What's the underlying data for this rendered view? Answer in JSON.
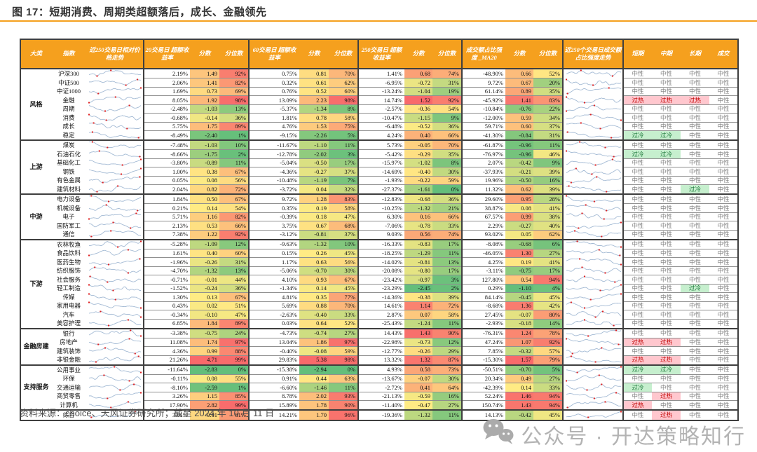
{
  "title": "图 17：短期消费、周期类超额落后，成长、金融领先",
  "source_note": "资料来源：choice、天风证券研究所；截至 2024 年 10 月 11 日",
  "watermark": {
    "icon": "wechat-icon",
    "text": "公众号 · 开达策略知行"
  },
  "colors": {
    "accent": "#F5A01E",
    "header_bg": "#F5A01E",
    "heat_low": "#63BE7B",
    "heat_mid": "#FFEB84",
    "heat_high": "#F8696B",
    "overheat_bg": "#FFC7CE",
    "overheat_text": "#C00000",
    "overcool_bg": "#C6EFCE",
    "overcool_text": "#1F7A3C",
    "spark_line": "#A3BAD4",
    "spark_dot": "#E01F1F"
  },
  "table": {
    "column_headers": [
      "大类",
      "指数",
      "近250交易日相对价格走势",
      "20交易日 超额收益率",
      "分数",
      "分位数",
      "60交易日 超额收益率",
      "分数",
      "分位数",
      "250交易日 超额收益率",
      "分数",
      "分位数",
      "成交额占比强度 _MA20",
      "分数",
      "分位数",
      "近250个交易日成交额占比强度走势",
      "短期",
      "中期",
      "长期",
      "成交"
    ],
    "legend": {
      "neutral": "中性",
      "overheat": "过热",
      "overcool": "过冷"
    },
    "groups": [
      {
        "category": "风格",
        "rows": [
          {
            "name": "沪深300",
            "r20": 2.19,
            "s20": 1.49,
            "p20": 92,
            "r60": 0.75,
            "s60": 0.81,
            "p60": 70,
            "r250": 1.41,
            "s250": 0.68,
            "p250": 74,
            "ma20": -48.9,
            "sma": 0.66,
            "pma": 52,
            "short": "中性",
            "mid": "中性",
            "long": "中性",
            "turnover": "中性"
          },
          {
            "name": "中证500",
            "r20": 2.06,
            "s20": 1.41,
            "p20": 82,
            "r60": 0.32,
            "s60": 0.61,
            "p60": 62,
            "r250": -6.95,
            "s250": -0.72,
            "p250": 31,
            "ma20": 9.72,
            "sma": 0.67,
            "pma": 20,
            "short": "中性",
            "mid": "中性",
            "long": "中性",
            "turnover": "中性"
          },
          {
            "name": "中证1000",
            "r20": 1.69,
            "s20": 0.73,
            "p20": 69,
            "r60": 0.76,
            "s60": 0.52,
            "p60": 60,
            "r250": -13.24,
            "s250": -1.04,
            "p250": 19,
            "ma20": 61.14,
            "sma": 0.89,
            "pma": 35,
            "short": "中性",
            "mid": "中性",
            "long": "中性",
            "turnover": "中性"
          },
          {
            "name": "金融",
            "r20": 8.05,
            "s20": 1.92,
            "p20": 98,
            "r60": 13.09,
            "s60": 2.23,
            "p60": 98,
            "r250": 14.74,
            "s250": 1.52,
            "p250": 92,
            "ma20": -45.92,
            "sma": 1.41,
            "pma": 83,
            "short": "过热",
            "mid": "过热",
            "long": "过热",
            "turnover": "中性"
          },
          {
            "name": "周期",
            "r20": -2.48,
            "s20": -1.03,
            "p20": 13,
            "r60": -5.37,
            "s60": -1.34,
            "p60": 8,
            "r250": -2.57,
            "s250": -0.36,
            "p250": 54,
            "ma20": -10.84,
            "sma": -0.76,
            "pma": 22,
            "short": "中性",
            "mid": "中性",
            "long": "中性",
            "turnover": "中性"
          },
          {
            "name": "消费",
            "r20": -0.68,
            "s20": -0.14,
            "p20": 36,
            "r60": 1.81,
            "s60": 0.78,
            "p60": 58,
            "r250": -10.47,
            "s250": -1.15,
            "p250": 9,
            "ma20": -12.0,
            "sma": 0.59,
            "pma": 34,
            "short": "中性",
            "mid": "中性",
            "long": "中性",
            "turnover": "中性"
          },
          {
            "name": "成长",
            "r20": 5.75,
            "s20": 1.75,
            "p20": 89,
            "r60": 4.76,
            "s60": 1.53,
            "p60": 75,
            "r250": -6.48,
            "s250": -0.52,
            "p250": 36,
            "ma20": 59.71,
            "sma": 0.6,
            "pma": 37,
            "short": "中性",
            "mid": "中性",
            "long": "中性",
            "turnover": "中性"
          },
          {
            "name": "稳定",
            "r20": -8.49,
            "s20": -2.4,
            "p20": 1,
            "r60": -9.15,
            "s60": -2.26,
            "p60": 5,
            "r250": 4.24,
            "s250": 0.4,
            "p250": 66,
            "ma20": -41.3,
            "sma": -0.84,
            "pma": 31,
            "short": "过冷",
            "mid": "过冷",
            "long": "中性",
            "turnover": "中性"
          }
        ]
      },
      {
        "category": "上游",
        "rows": [
          {
            "name": "煤炭",
            "r20": -7.48,
            "s20": -1.03,
            "p20": 10,
            "r60": -11.67,
            "s60": -1.1,
            "p60": 11,
            "r250": 5.73,
            "s250": -0.05,
            "p250": 70,
            "ma20": -61.87,
            "sma": -0.96,
            "pma": 11,
            "short": "中性",
            "mid": "中性",
            "long": "中性",
            "turnover": "中性"
          },
          {
            "name": "石油石化",
            "r20": -8.66,
            "s20": -1.75,
            "p20": 2,
            "r60": -12.78,
            "s60": -2.02,
            "p60": 3,
            "r250": -5.42,
            "s250": -0.29,
            "p250": 35,
            "ma20": -76.97,
            "sma": -0.96,
            "pma": 46,
            "short": "过冷",
            "mid": "过冷",
            "long": "中性",
            "turnover": "中性"
          },
          {
            "name": "基础化工",
            "r20": -3.8,
            "s20": -0.89,
            "p20": 11,
            "r60": -5.04,
            "s60": -0.5,
            "p60": 17,
            "r250": -15.97,
            "s250": -1.02,
            "p250": 8,
            "ma20": 2.07,
            "sma": -0.42,
            "pma": 9,
            "short": "中性",
            "mid": "中性",
            "long": "中性",
            "turnover": "中性"
          },
          {
            "name": "钢铁",
            "r20": 1.0,
            "s20": 0.38,
            "p20": 67,
            "r60": -4.36,
            "s60": -0.27,
            "p60": 37,
            "r250": -14.69,
            "s250": -0.4,
            "p250": 30,
            "ma20": -37.93,
            "sma": -0.21,
            "pma": 39,
            "short": "中性",
            "mid": "中性",
            "long": "中性",
            "turnover": "中性"
          },
          {
            "name": "有色金属",
            "r20": 0.05,
            "s20": 0.08,
            "p20": 56,
            "r60": -10.48,
            "s60": -1.19,
            "p60": 7,
            "r250": -1.93,
            "s250": -0.22,
            "p250": 59,
            "ma20": 19.96,
            "sma": -0.5,
            "pma": 16,
            "short": "中性",
            "mid": "中性",
            "long": "中性",
            "turnover": "中性"
          },
          {
            "name": "建筑材料",
            "r20": 2.04,
            "s20": 0.82,
            "p20": 72,
            "r60": -3.72,
            "s60": 0.04,
            "p60": 32,
            "r250": -27.37,
            "s250": -1.61,
            "p250": 0,
            "ma20": 11.32,
            "sma": 0.62,
            "pma": 39,
            "short": "中性",
            "mid": "中性",
            "long": "过冷",
            "turnover": "中性"
          }
        ]
      },
      {
        "category": "中游",
        "rows": [
          {
            "name": "电力设备",
            "r20": 1.84,
            "s20": 0.5,
            "p20": 67,
            "r60": 9.72,
            "s60": 1.28,
            "p60": 83,
            "r250": -12.83,
            "s250": -0.68,
            "p250": 36,
            "ma20": 29.6,
            "sma": 0.95,
            "pma": 28,
            "short": "中性",
            "mid": "中性",
            "long": "中性",
            "turnover": "中性"
          },
          {
            "name": "机械设备",
            "r20": 0.21,
            "s20": 0.14,
            "p20": 54,
            "r60": 0.35,
            "s60": 0.19,
            "p60": 58,
            "r250": -10.25,
            "s250": -1.32,
            "p250": 21,
            "ma20": 38.87,
            "sma": 0.08,
            "pma": 41,
            "short": "中性",
            "mid": "中性",
            "long": "中性",
            "turnover": "中性"
          },
          {
            "name": "电子",
            "r20": 5.71,
            "s20": 1.16,
            "p20": 82,
            "r60": -0.39,
            "s60": 0.18,
            "p60": 47,
            "r250": 6.3,
            "s250": 0.16,
            "p250": 66,
            "ma20": 67.57,
            "sma": 0.99,
            "pma": 38,
            "short": "中性",
            "mid": "中性",
            "long": "中性",
            "turnover": "中性"
          },
          {
            "name": "国防军工",
            "r20": 2.13,
            "s20": 0.53,
            "p20": 66,
            "r60": 3.75,
            "s60": 0.67,
            "p60": 68,
            "r250": -7.06,
            "s250": -0.78,
            "p250": 33,
            "ma20": 2.29,
            "sma": -0.27,
            "pma": 40,
            "short": "中性",
            "mid": "中性",
            "long": "中性",
            "turnover": "中性"
          },
          {
            "name": "通信",
            "r20": 7.38,
            "s20": 1.22,
            "p20": 92,
            "r60": -3.12,
            "s60": -0.81,
            "p60": 37,
            "r250": 9.03,
            "s250": 0.56,
            "p250": 74,
            "ma20": 93.02,
            "sma": 0.05,
            "pma": 62,
            "short": "中性",
            "mid": "中性",
            "long": "中性",
            "turnover": "中性"
          }
        ]
      },
      {
        "category": "下游",
        "rows": [
          {
            "name": "农林牧渔",
            "r20": -5.28,
            "s20": -1.09,
            "p20": 12,
            "r60": -9.63,
            "s60": -1.32,
            "p60": 10,
            "r250": -16.33,
            "s250": -0.83,
            "p250": 17,
            "ma20": -8.08,
            "sma": -0.68,
            "pma": 6,
            "short": "中性",
            "mid": "中性",
            "long": "中性",
            "turnover": "中性"
          },
          {
            "name": "食品饮料",
            "r20": 1.61,
            "s20": 0.4,
            "p20": 60,
            "r60": 0.15,
            "s60": 0.26,
            "p60": 45,
            "r250": -18.25,
            "s250": -1.29,
            "p250": 11,
            "ma20": -46.05,
            "sma": 1.3,
            "pma": 27,
            "short": "中性",
            "mid": "中性",
            "long": "中性",
            "turnover": "中性"
          },
          {
            "name": "医药生物",
            "r20": -1.96,
            "s20": -0.26,
            "p20": 31,
            "r60": 1.17,
            "s60": 0.63,
            "p60": 56,
            "r250": -14.02,
            "s250": -0.81,
            "p250": 13,
            "ma20": 4.25,
            "sma": 0.19,
            "pma": 41,
            "short": "中性",
            "mid": "中性",
            "long": "中性",
            "turnover": "中性"
          },
          {
            "name": "纺织服饰",
            "r20": -4.7,
            "s20": -1.32,
            "p20": 13,
            "r60": -5.06,
            "s60": -0.7,
            "p60": 30,
            "r250": -20.08,
            "s250": -0.8,
            "p250": 17,
            "ma20": -3.11,
            "sma": -0.75,
            "pma": 17,
            "short": "中性",
            "mid": "中性",
            "long": "中性",
            "turnover": "中性"
          },
          {
            "name": "社会服务",
            "r20": -0.71,
            "s20": -0.01,
            "p20": 44,
            "r60": 4.1,
            "s60": 0.93,
            "p60": 67,
            "r250": -23.42,
            "s250": -0.97,
            "p250": 3,
            "ma20": 127.8,
            "sma": 0.54,
            "pma": 94,
            "short": "中性",
            "mid": "中性",
            "long": "中性",
            "turnover": "中性"
          },
          {
            "name": "轻工制造",
            "r20": -1.52,
            "s20": -0.24,
            "p20": 36,
            "r60": -1.34,
            "s60": 0.14,
            "p60": 45,
            "r250": -23.29,
            "s250": -2.45,
            "p250": 2,
            "ma20": 0.29,
            "sma": -1.1,
            "pma": 4,
            "short": "中性",
            "mid": "中性",
            "long": "过冷",
            "turnover": "中性"
          },
          {
            "name": "传媒",
            "r20": 1.3,
            "s20": 0.13,
            "p20": 67,
            "r60": 4.81,
            "s60": 0.35,
            "p60": 77,
            "r250": -14.36,
            "s250": -0.38,
            "p250": 39,
            "ma20": 84.14,
            "sma": -0.45,
            "pma": 45,
            "short": "中性",
            "mid": "中性",
            "long": "中性",
            "turnover": "中性"
          },
          {
            "name": "家用电器",
            "r20": 0.43,
            "s20": 0.02,
            "p20": 51,
            "r60": 5.69,
            "s60": 0.88,
            "p60": 70,
            "r250": 14.61,
            "s250": 1.14,
            "p250": 72,
            "ma20": -8.68,
            "sma": 1.36,
            "pma": 42,
            "short": "中性",
            "mid": "中性",
            "long": "中性",
            "turnover": "中性"
          },
          {
            "name": "汽车",
            "r20": -0.34,
            "s20": -0.1,
            "p20": 47,
            "r60": -2.63,
            "s60": -0.4,
            "p60": 33,
            "r250": 2.87,
            "s250": 0.07,
            "p250": 58,
            "ma20": 27.45,
            "sma": -0.07,
            "pma": 80,
            "short": "中性",
            "mid": "中性",
            "long": "中性",
            "turnover": "中性"
          },
          {
            "name": "美容护理",
            "r20": 6.85,
            "s20": 1.84,
            "p20": 89,
            "r60": 0.03,
            "s60": 0.64,
            "p60": 52,
            "r250": -25.43,
            "s250": -1.24,
            "p250": 11,
            "ma20": -2.93,
            "sma": -0.18,
            "pma": 14,
            "short": "中性",
            "mid": "中性",
            "long": "中性",
            "turnover": "中性"
          }
        ]
      },
      {
        "category": "金融房建",
        "rows": [
          {
            "name": "银行",
            "r20": -3.38,
            "s20": -0.75,
            "p20": 24,
            "r60": -4.73,
            "s60": -0.74,
            "p60": 27,
            "r250": 14.43,
            "s250": 1.43,
            "p250": 90,
            "ma20": -76.31,
            "sma": 1.24,
            "pma": 78,
            "short": "中性",
            "mid": "中性",
            "long": "中性",
            "turnover": "中性"
          },
          {
            "name": "房地产",
            "r20": 11.08,
            "s20": 1.74,
            "p20": 97,
            "r60": 13.04,
            "s60": 1.86,
            "p60": 97,
            "r250": -22.98,
            "s250": -0.73,
            "p250": 12,
            "ma20": 47.24,
            "sma": 1.07,
            "pma": 92,
            "short": "过热",
            "mid": "过热",
            "long": "中性",
            "turnover": "中性"
          },
          {
            "name": "建筑装饰",
            "r20": 4.36,
            "s20": 0.99,
            "p20": 88,
            "r60": -0.4,
            "s60": -0.08,
            "p60": 59,
            "r250": -12.77,
            "s250": -0.26,
            "p250": 29,
            "ma20": 7.85,
            "sma": -0.32,
            "pma": 57,
            "short": "中性",
            "mid": "中性",
            "long": "中性",
            "turnover": "中性"
          },
          {
            "name": "非银金融",
            "r20": 21.26,
            "s20": 4.71,
            "p20": 99,
            "r60": 29.83,
            "s60": 5.38,
            "p60": 98,
            "r250": 13.32,
            "s250": 1.32,
            "p250": 87,
            "ma20": -15.3,
            "sma": 1.57,
            "pma": 79,
            "short": "过热",
            "mid": "过热",
            "long": "中性",
            "turnover": "中性"
          }
        ]
      },
      {
        "category": "支持服务",
        "rows": [
          {
            "name": "公用事业",
            "r20": -11.64,
            "s20": -2.83,
            "p20": 0,
            "r60": -15.38,
            "s60": -2.94,
            "p60": 0,
            "r250": 4.93,
            "s250": 0.58,
            "p250": 73,
            "ma20": -50.51,
            "sma": -0.7,
            "pma": 5,
            "short": "过冷",
            "mid": "过冷",
            "long": "中性",
            "turnover": "中性"
          },
          {
            "name": "环保",
            "r20": -0.11,
            "s20": 0.08,
            "p20": 55,
            "r60": 0.91,
            "s60": 0.44,
            "p60": 63,
            "r250": -13.67,
            "s250": -0.07,
            "p250": 30,
            "ma20": 20.34,
            "sma": 0.49,
            "pma": 27,
            "short": "中性",
            "mid": "中性",
            "long": "中性",
            "turnover": "中性"
          },
          {
            "name": "交通运输",
            "r20": -8.1,
            "s20": -2.59,
            "p20": 1,
            "r60": -6.6,
            "s60": -1.46,
            "p60": 11,
            "r250": -2.72,
            "s250": 0.41,
            "p250": 64,
            "ma20": -42.39,
            "sma": 0.14,
            "pma": 33,
            "short": "过冷",
            "mid": "中性",
            "long": "中性",
            "turnover": "中性"
          },
          {
            "name": "商贸零售",
            "r20": 3.26,
            "s20": 1.15,
            "p20": 85,
            "r60": 8.78,
            "s60": 2.02,
            "p60": 93,
            "r250": -21.13,
            "s250": -0.59,
            "p250": 16,
            "ma20": 52.24,
            "sma": 1.46,
            "pma": 94,
            "short": "中性",
            "mid": "过热",
            "long": "中性",
            "turnover": "中性"
          },
          {
            "name": "计算机",
            "r20": 17.9,
            "s20": 2.82,
            "p20": 99,
            "r60": 15.89,
            "s60": 1.78,
            "p60": 90,
            "r250": -11.4,
            "s250": -0.47,
            "p250": 27,
            "ma20": 150.74,
            "sma": 1.43,
            "pma": 94,
            "short": "过热",
            "mid": "中性",
            "long": "中性",
            "turnover": "中性"
          }
        ]
      },
      {
        "category": "",
        "rows": [
          {
            "name": "综合",
            "r20": 3.81,
            "s20": 0.81,
            "p20": 81,
            "r60": 14.21,
            "s60": 1.7,
            "p60": 96,
            "r250": -19.36,
            "s250": -1.32,
            "p250": 11,
            "ma20": 14.13,
            "sma": -0.42,
            "pma": 45,
            "short": "中性",
            "mid": "过热",
            "long": "中性",
            "turnover": "中性"
          }
        ]
      }
    ]
  }
}
